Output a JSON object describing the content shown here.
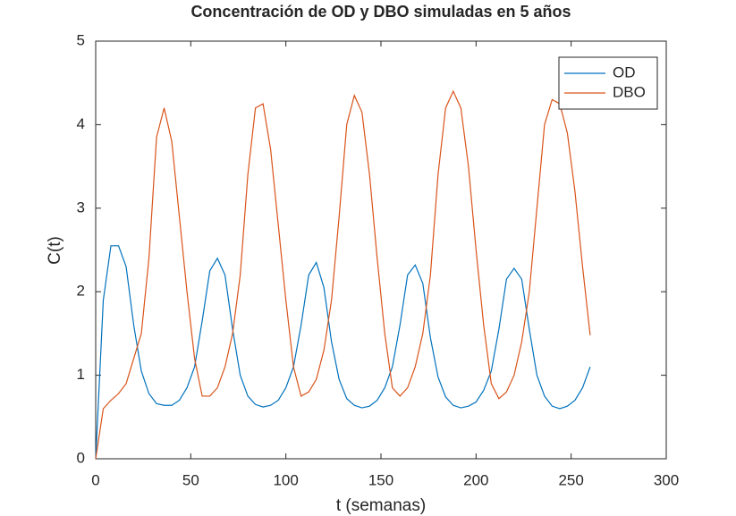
{
  "chart_data": {
    "type": "line",
    "title": "Concentración de OD y DBO simuladas en 5 años",
    "xlabel": "t (semanas)",
    "ylabel": "C(t)",
    "x": [
      0,
      4,
      8,
      12,
      16,
      20,
      24,
      28,
      32,
      36,
      40,
      44,
      48,
      52,
      56,
      60,
      64,
      68,
      72,
      76,
      80,
      84,
      88,
      92,
      96,
      100,
      104,
      108,
      112,
      116,
      120,
      124,
      128,
      132,
      136,
      140,
      144,
      148,
      152,
      156,
      160,
      164,
      168,
      172,
      176,
      180,
      184,
      188,
      192,
      196,
      200,
      204,
      208,
      212,
      216,
      220,
      224,
      228,
      232,
      236,
      240,
      244,
      248,
      252,
      256,
      260
    ],
    "series": [
      {
        "name": "OD",
        "color": "#0072bd",
        "values": [
          0,
          1.9,
          2.55,
          2.55,
          2.3,
          1.6,
          1.05,
          0.78,
          0.66,
          0.64,
          0.64,
          0.7,
          0.85,
          1.1,
          1.65,
          2.25,
          2.4,
          2.2,
          1.55,
          1.0,
          0.75,
          0.65,
          0.62,
          0.64,
          0.7,
          0.85,
          1.1,
          1.6,
          2.2,
          2.35,
          2.05,
          1.4,
          0.95,
          0.72,
          0.64,
          0.61,
          0.63,
          0.7,
          0.85,
          1.1,
          1.6,
          2.2,
          2.32,
          2.1,
          1.45,
          0.98,
          0.74,
          0.64,
          0.61,
          0.63,
          0.68,
          0.82,
          1.05,
          1.55,
          2.15,
          2.28,
          2.15,
          1.55,
          1.0,
          0.75,
          0.63,
          0.6,
          0.63,
          0.7,
          0.85,
          1.1
        ]
      },
      {
        "name": "DBO",
        "color": "#d95319",
        "values": [
          0,
          0.6,
          0.7,
          0.78,
          0.9,
          1.2,
          1.5,
          2.4,
          3.85,
          4.2,
          3.8,
          2.9,
          2.0,
          1.2,
          0.75,
          0.75,
          0.85,
          1.1,
          1.5,
          2.2,
          3.4,
          4.2,
          4.25,
          3.7,
          2.8,
          1.9,
          1.1,
          0.75,
          0.8,
          0.95,
          1.3,
          1.9,
          2.9,
          4.0,
          4.35,
          4.15,
          3.4,
          2.4,
          1.5,
          0.85,
          0.75,
          0.85,
          1.1,
          1.5,
          2.2,
          3.4,
          4.2,
          4.4,
          4.2,
          3.5,
          2.5,
          1.6,
          0.9,
          0.72,
          0.8,
          1.0,
          1.4,
          2.0,
          3.0,
          4.0,
          4.3,
          4.25,
          3.9,
          3.2,
          2.3,
          1.48
        ]
      }
    ],
    "xlim": [
      0,
      300
    ],
    "xticks": [
      0,
      50,
      100,
      150,
      200,
      250,
      300
    ],
    "ylim": [
      0,
      5
    ],
    "yticks": [
      0,
      1,
      2,
      3,
      4,
      5
    ],
    "legend": "upper right"
  }
}
